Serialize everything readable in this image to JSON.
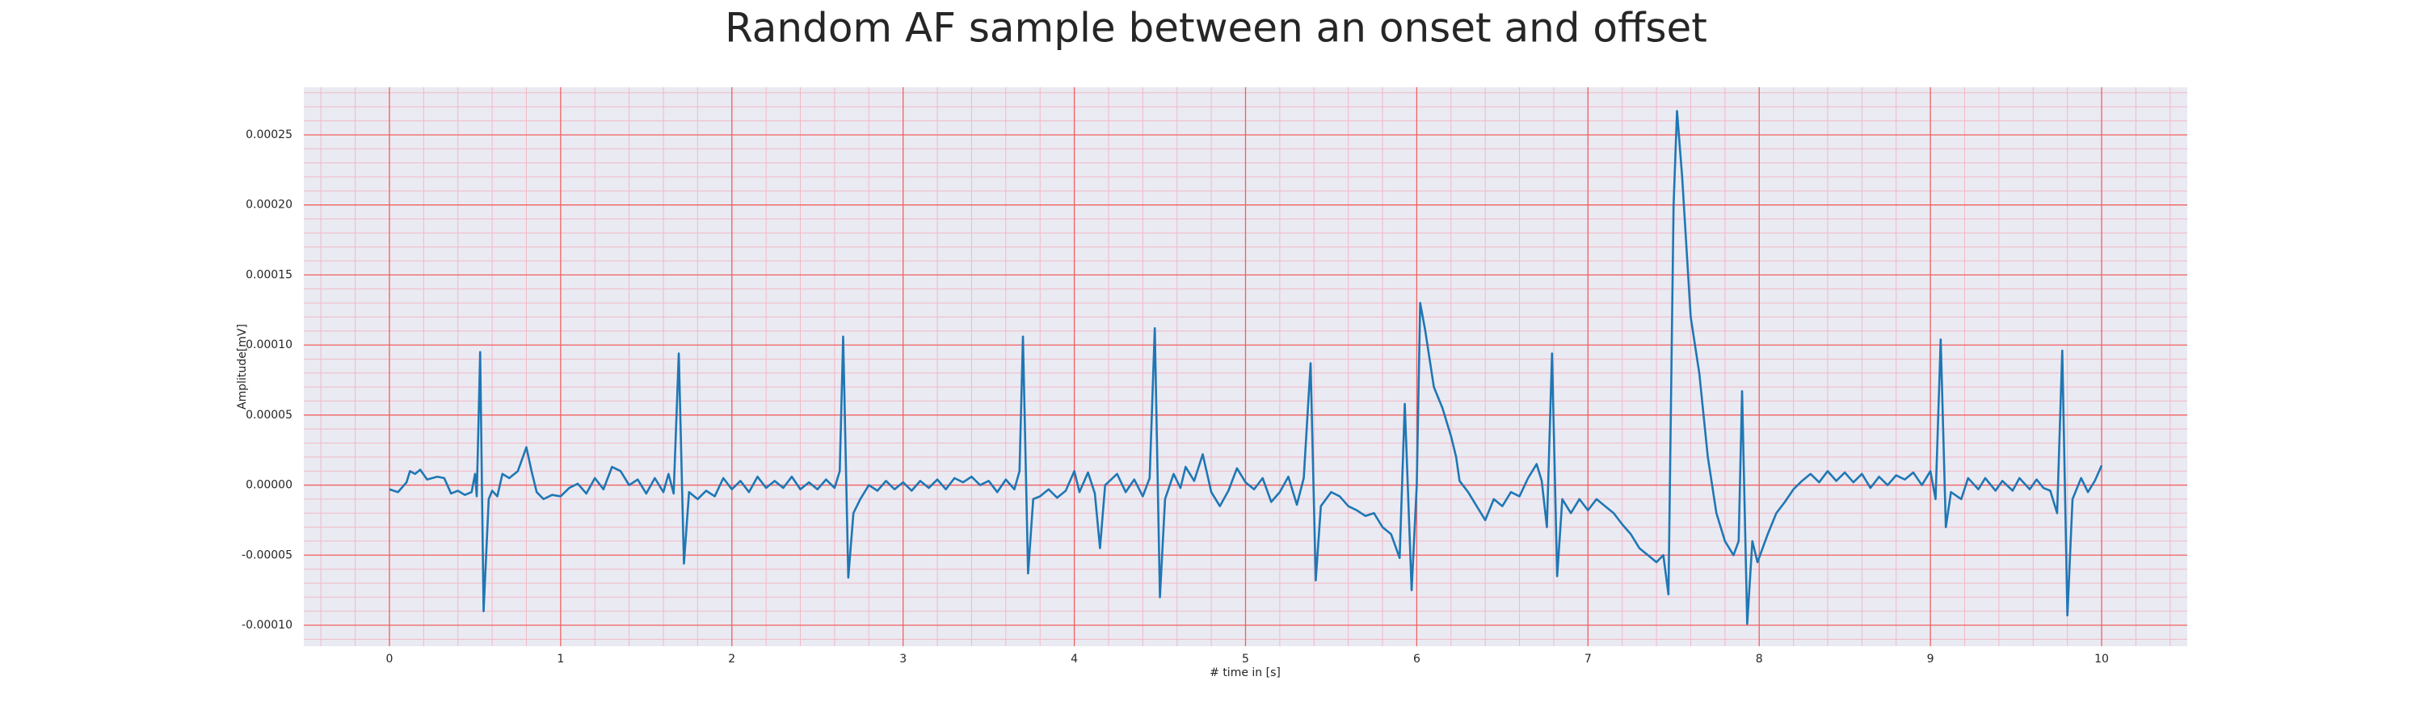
{
  "chart_data": {
    "type": "line",
    "title": "Random AF sample between an onset and offset",
    "xlabel": "# time in [s]",
    "ylabel": "Amplitude[mV]",
    "xlim": [
      -0.5,
      10.5
    ],
    "ylim": [
      -0.000115,
      0.000284
    ],
    "xticks": [
      0,
      1,
      2,
      3,
      4,
      5,
      6,
      7,
      8,
      9,
      10
    ],
    "yticks": [
      {
        "value": -0.0001,
        "label": "-0.00010"
      },
      -5e-05,
      {
        "value": 0,
        "label": "0.00000"
      },
      5e-05,
      {
        "value": 0.0001,
        "label": "0.00010"
      },
      0.00015,
      {
        "value": 0.0002,
        "label": "0.00020"
      },
      0.00025
    ],
    "grid": true,
    "minor_grid": true,
    "series": [
      {
        "color": "#1f77b4",
        "x": [
          0,
          0.05,
          0.1,
          0.12,
          0.15,
          0.18,
          0.22,
          0.28,
          0.32,
          0.36,
          0.4,
          0.44,
          0.48,
          0.5,
          0.51,
          0.53,
          0.55,
          0.58,
          0.6,
          0.63,
          0.66,
          0.7,
          0.75,
          0.8,
          0.83,
          0.86,
          0.9,
          0.95,
          1.0,
          1.05,
          1.1,
          1.15,
          1.2,
          1.25,
          1.3,
          1.35,
          1.4,
          1.45,
          1.5,
          1.55,
          1.6,
          1.63,
          1.66,
          1.69,
          1.72,
          1.75,
          1.8,
          1.85,
          1.9,
          1.95,
          2.0,
          2.05,
          2.1,
          2.15,
          2.2,
          2.25,
          2.3,
          2.35,
          2.4,
          2.45,
          2.5,
          2.55,
          2.6,
          2.63,
          2.65,
          2.68,
          2.71,
          2.75,
          2.8,
          2.85,
          2.9,
          2.95,
          3.0,
          3.05,
          3.1,
          3.15,
          3.2,
          3.25,
          3.3,
          3.35,
          3.4,
          3.45,
          3.5,
          3.55,
          3.6,
          3.65,
          3.68,
          3.7,
          3.73,
          3.76,
          3.8,
          3.85,
          3.9,
          3.95,
          4.0,
          4.03,
          4.08,
          4.12,
          4.15,
          4.18,
          4.25,
          4.3,
          4.35,
          4.4,
          4.44,
          4.47,
          4.5,
          4.53,
          4.58,
          4.62,
          4.65,
          4.7,
          4.75,
          4.8,
          4.85,
          4.9,
          4.95,
          5.0,
          5.05,
          5.1,
          5.15,
          5.2,
          5.25,
          5.3,
          5.34,
          5.38,
          5.41,
          5.44,
          5.5,
          5.55,
          5.6,
          5.65,
          5.7,
          5.75,
          5.8,
          5.85,
          5.9,
          5.93,
          5.97,
          6.0,
          6.02,
          6.05,
          6.1,
          6.15,
          6.2,
          6.23,
          6.25,
          6.3,
          6.35,
          6.4,
          6.45,
          6.5,
          6.55,
          6.6,
          6.65,
          6.7,
          6.73,
          6.76,
          6.79,
          6.82,
          6.85,
          6.9,
          6.95,
          7.0,
          7.05,
          7.1,
          7.15,
          7.2,
          7.25,
          7.3,
          7.35,
          7.4,
          7.44,
          7.47,
          7.5,
          7.52,
          7.55,
          7.6,
          7.65,
          7.7,
          7.75,
          7.8,
          7.85,
          7.88,
          7.9,
          7.93,
          7.96,
          7.99,
          8.05,
          8.1,
          8.15,
          8.2,
          8.25,
          8.3,
          8.35,
          8.4,
          8.45,
          8.5,
          8.55,
          8.6,
          8.65,
          8.7,
          8.75,
          8.8,
          8.85,
          8.9,
          8.95,
          9.0,
          9.03,
          9.06,
          9.09,
          9.12,
          9.18,
          9.22,
          9.28,
          9.32,
          9.38,
          9.42,
          9.48,
          9.52,
          9.58,
          9.62,
          9.66,
          9.7,
          9.74,
          9.77,
          9.8,
          9.83,
          9.88,
          9.92,
          9.96,
          10.0
        ],
        "values": [
          -3e-06,
          -5e-06,
          2e-06,
          1e-05,
          8e-06,
          1.1e-05,
          4e-06,
          6e-06,
          5e-06,
          -6e-06,
          -4e-06,
          -7e-06,
          -5e-06,
          8e-06,
          -8e-06,
          9.5e-05,
          -9e-05,
          -1e-05,
          -4e-06,
          -8e-06,
          8e-06,
          5e-06,
          1e-05,
          2.7e-05,
          1e-05,
          -5e-06,
          -1e-05,
          -7e-06,
          -8e-06,
          -2e-06,
          1e-06,
          -6e-06,
          5e-06,
          -3e-06,
          1.3e-05,
          1e-05,
          0,
          4e-06,
          -6e-06,
          5e-06,
          -5e-06,
          8e-06,
          -6e-06,
          9.4e-05,
          -5.6e-05,
          -5e-06,
          -1e-05,
          -4e-06,
          -8e-06,
          5e-06,
          -3e-06,
          3e-06,
          -5e-06,
          6e-06,
          -2e-06,
          3e-06,
          -2e-06,
          6e-06,
          -3e-06,
          2e-06,
          -3e-06,
          4e-06,
          -2e-06,
          1e-05,
          0.000106,
          -6.6e-05,
          -2e-05,
          -1e-05,
          0,
          -4e-06,
          3e-06,
          -3e-06,
          2e-06,
          -4e-06,
          3e-06,
          -2e-06,
          4e-06,
          -3e-06,
          5e-06,
          2e-06,
          6e-06,
          0,
          3e-06,
          -5e-06,
          4e-06,
          -3e-06,
          1e-05,
          0.000106,
          -6.3e-05,
          -1e-05,
          -8e-06,
          -3e-06,
          -9e-06,
          -4e-06,
          1e-05,
          -5e-06,
          9e-06,
          -6e-06,
          -4.5e-05,
          0,
          8e-06,
          -5e-06,
          4e-06,
          -8e-06,
          5e-06,
          0.000112,
          -8e-05,
          -1e-05,
          8e-06,
          -2e-06,
          1.3e-05,
          3e-06,
          2.2e-05,
          -5e-06,
          -1.5e-05,
          -4e-06,
          1.2e-05,
          2e-06,
          -3e-06,
          5e-06,
          -1.2e-05,
          -5e-06,
          6e-06,
          -1.4e-05,
          5e-06,
          8.7e-05,
          -6.8e-05,
          -1.5e-05,
          -5e-06,
          -8e-06,
          -1.5e-05,
          -1.8e-05,
          -2.2e-05,
          -2e-05,
          -3e-05,
          -3.5e-05,
          -5.2e-05,
          5.8e-05,
          -7.5e-05,
          0,
          0.00013,
          0.00011,
          7e-05,
          5.5e-05,
          3.5e-05,
          2e-05,
          3e-06,
          -5e-06,
          -1.5e-05,
          -2.5e-05,
          -1e-05,
          -1.5e-05,
          -5e-06,
          -8e-06,
          5e-06,
          1.5e-05,
          3e-06,
          -3e-05,
          9.4e-05,
          -6.5e-05,
          -1e-05,
          -2e-05,
          -1e-05,
          -1.8e-05,
          -1e-05,
          -1.5e-05,
          -2e-05,
          -2.8e-05,
          -3.5e-05,
          -4.5e-05,
          -5e-05,
          -5.5e-05,
          -5e-05,
          -7.8e-05,
          0.0002,
          0.000267,
          0.00022,
          0.00012,
          8e-05,
          2e-05,
          -2e-05,
          -4e-05,
          -5e-05,
          -4e-05,
          6.7e-05,
          -9.9e-05,
          -4e-05,
          -5.5e-05,
          -3.5e-05,
          -2e-05,
          -1.2e-05,
          -3e-06,
          3e-06,
          8e-06,
          2e-06,
          1e-05,
          3e-06,
          9e-06,
          2e-06,
          8e-06,
          -2e-06,
          6e-06,
          0,
          7e-06,
          4e-06,
          9e-06,
          0,
          1e-05,
          -1e-05,
          0.000104,
          -3e-05,
          -5e-06,
          -1e-05,
          5e-06,
          -3e-06,
          5e-06,
          -4e-06,
          3e-06,
          -4e-06,
          5e-06,
          -3e-06,
          4e-06,
          -2e-06,
          -4e-06,
          -2e-05,
          9.6e-05,
          -9.3e-05,
          -1e-05,
          5e-06,
          -5e-06,
          3e-06,
          1.4e-05
        ]
      }
    ]
  }
}
